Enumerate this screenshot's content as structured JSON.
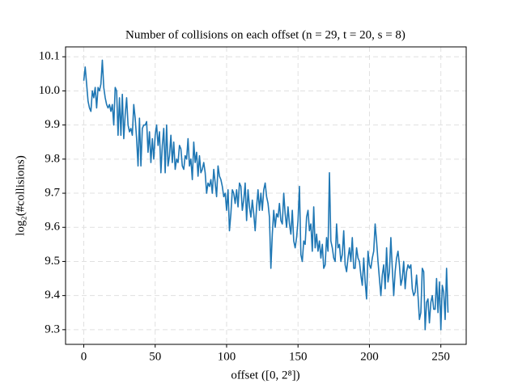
{
  "chart_data": {
    "type": "line",
    "title": "Number of collisions on each offset (n = 29, t = 20, s = 8)",
    "x_label": "offset ([0, 2⁸])",
    "y_label": "log₂(#collisions)",
    "color": "#1f77b4",
    "grid": true,
    "xlim": [
      -12.75,
      267.75
    ],
    "ylim": [
      9.257,
      10.129
    ],
    "xticks": [
      0,
      50,
      100,
      150,
      200,
      250
    ],
    "yticks": [
      9.3,
      9.4,
      9.5,
      9.6,
      9.7,
      9.8,
      9.9,
      {
        "value": 10,
        "label": "10.0"
      },
      10.1
    ],
    "x": [
      0,
      1,
      2,
      3,
      4,
      5,
      6,
      7,
      8,
      9,
      10,
      11,
      12,
      13,
      14,
      15,
      16,
      17,
      18,
      19,
      20,
      21,
      22,
      23,
      24,
      25,
      26,
      27,
      28,
      29,
      30,
      31,
      32,
      33,
      34,
      35,
      36,
      37,
      38,
      39,
      40,
      41,
      42,
      43,
      44,
      45,
      46,
      47,
      48,
      49,
      50,
      51,
      52,
      53,
      54,
      55,
      56,
      57,
      58,
      59,
      60,
      61,
      62,
      63,
      64,
      65,
      66,
      67,
      68,
      69,
      70,
      71,
      72,
      73,
      74,
      75,
      76,
      77,
      78,
      79,
      80,
      81,
      82,
      83,
      84,
      85,
      86,
      87,
      88,
      89,
      90,
      91,
      92,
      93,
      94,
      95,
      96,
      97,
      98,
      99,
      100,
      101,
      102,
      103,
      104,
      105,
      106,
      107,
      108,
      109,
      110,
      111,
      112,
      113,
      114,
      115,
      116,
      117,
      118,
      119,
      120,
      121,
      122,
      123,
      124,
      125,
      126,
      127,
      128,
      129,
      130,
      131,
      132,
      133,
      134,
      135,
      136,
      137,
      138,
      139,
      140,
      141,
      142,
      143,
      144,
      145,
      146,
      147,
      148,
      149,
      150,
      151,
      152,
      153,
      154,
      155,
      156,
      157,
      158,
      159,
      160,
      161,
      162,
      163,
      164,
      165,
      166,
      167,
      168,
      169,
      170,
      171,
      172,
      173,
      174,
      175,
      176,
      177,
      178,
      179,
      180,
      181,
      182,
      183,
      184,
      185,
      186,
      187,
      188,
      189,
      190,
      191,
      192,
      193,
      194,
      195,
      196,
      197,
      198,
      199,
      200,
      201,
      202,
      203,
      204,
      205,
      206,
      207,
      208,
      209,
      210,
      211,
      212,
      213,
      214,
      215,
      216,
      217,
      218,
      219,
      220,
      221,
      222,
      223,
      224,
      225,
      226,
      227,
      228,
      229,
      230,
      231,
      232,
      233,
      234,
      235,
      236,
      237,
      238,
      239,
      240,
      241,
      242,
      243,
      244,
      245,
      246,
      247,
      248,
      249,
      250,
      251,
      252,
      253,
      254,
      255
    ],
    "values": [
      10.03,
      10.07,
      10.02,
      9.97,
      9.95,
      9.94,
      10.0,
      9.98,
      10.01,
      9.95,
      10.01,
      10.0,
      10.02,
      10.09,
      10.01,
      9.98,
      9.96,
      9.95,
      9.96,
      9.94,
      9.96,
      9.9,
      10.01,
      10.0,
      9.87,
      9.98,
      9.87,
      9.99,
      9.86,
      9.93,
      9.98,
      9.9,
      9.88,
      9.89,
      9.87,
      9.96,
      9.92,
      9.86,
      9.78,
      9.92,
      9.78,
      9.89,
      9.9,
      9.9,
      9.91,
      9.82,
      9.88,
      9.79,
      9.86,
      9.8,
      9.87,
      9.9,
      9.84,
      9.88,
      9.76,
      9.84,
      9.89,
      9.76,
      9.9,
      9.78,
      9.81,
      9.87,
      9.79,
      9.85,
      9.77,
      9.8,
      9.79,
      9.84,
      9.83,
      9.78,
      9.77,
      9.81,
      9.8,
      9.86,
      9.78,
      9.8,
      9.74,
      9.85,
      9.79,
      9.82,
      9.75,
      9.81,
      9.76,
      9.77,
      9.79,
      9.76,
      9.7,
      9.73,
      9.72,
      9.74,
      9.7,
      9.77,
      9.73,
      9.69,
      9.78,
      9.75,
      9.74,
      9.72,
      9.69,
      9.7,
      9.65,
      9.71,
      9.59,
      9.64,
      9.71,
      9.7,
      9.67,
      9.71,
      9.66,
      9.73,
      9.72,
      9.65,
      9.68,
      9.73,
      9.62,
      9.71,
      9.66,
      9.63,
      9.68,
      9.64,
      9.59,
      9.66,
      9.71,
      9.65,
      9.7,
      9.65,
      9.71,
      9.73,
      9.69,
      9.67,
      9.63,
      9.48,
      9.58,
      9.65,
      9.6,
      9.64,
      9.63,
      9.67,
      9.62,
      9.61,
      9.7,
      9.64,
      9.6,
      9.66,
      9.61,
      9.58,
      9.65,
      9.56,
      9.54,
      9.57,
      9.62,
      9.72,
      9.52,
      9.5,
      9.56,
      9.55,
      9.63,
      9.65,
      9.59,
      9.61,
      9.53,
      9.66,
      9.54,
      9.58,
      9.53,
      9.56,
      9.51,
      9.55,
      9.48,
      9.49,
      9.57,
      9.53,
      9.76,
      9.56,
      9.54,
      9.51,
      9.5,
      9.61,
      9.54,
      9.55,
      9.5,
      9.52,
      9.59,
      9.49,
      9.47,
      9.51,
      9.54,
      9.5,
      9.57,
      9.48,
      9.48,
      9.54,
      9.51,
      9.5,
      9.46,
      9.43,
      9.51,
      9.44,
      9.39,
      9.53,
      9.49,
      9.48,
      9.51,
      9.53,
      9.61,
      9.56,
      9.5,
      9.45,
      9.4,
      9.46,
      9.49,
      9.42,
      9.54,
      9.44,
      9.47,
      9.57,
      9.48,
      9.4,
      9.47,
      9.51,
      9.53,
      9.49,
      9.43,
      9.45,
      9.5,
      9.42,
      9.47,
      9.49,
      9.48,
      9.49,
      9.42,
      9.4,
      9.41,
      9.46,
      9.4,
      9.33,
      9.35,
      9.48,
      9.47,
      9.3,
      9.38,
      9.39,
      9.32,
      9.38,
      9.4,
      9.36,
      9.36,
      9.45,
      9.35,
      9.44,
      9.3,
      9.43,
      9.41,
      9.33,
      9.48,
      9.35
    ]
  }
}
